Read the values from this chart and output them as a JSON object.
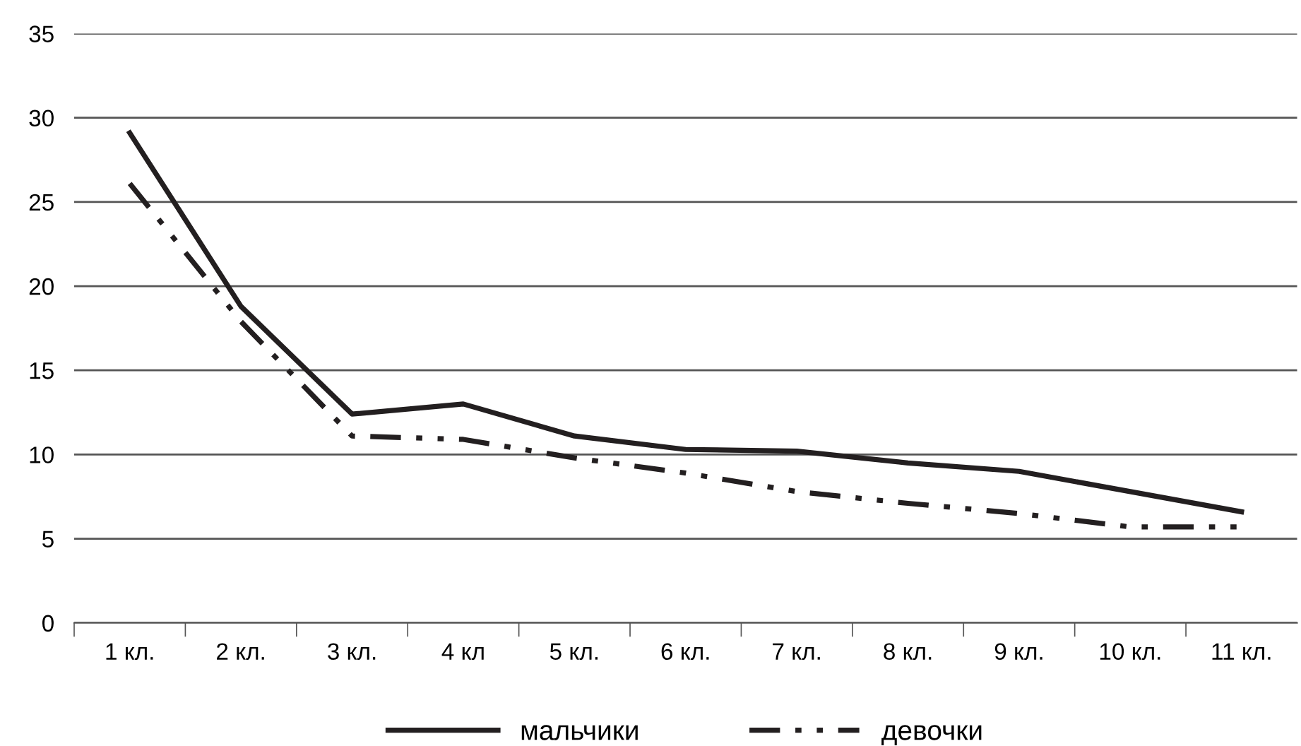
{
  "chart_data": {
    "type": "line",
    "categories": [
      "1 кл.",
      "2 кл.",
      "3 кл.",
      "4 кл",
      "5 кл.",
      "6 кл.",
      "7 кл.",
      "8 кл.",
      "9 кл.",
      "10 кл.",
      "11 кл."
    ],
    "series": [
      {
        "name": "мальчики",
        "color": "#231f20",
        "line_style": "solid",
        "values": [
          29.1,
          18.8,
          12.4,
          13.0,
          11.1,
          10.3,
          10.2,
          9.5,
          9.0,
          7.8,
          6.6
        ]
      },
      {
        "name": "девочки",
        "color": "#231f20",
        "line_style": "dashed",
        "values": [
          26.1,
          17.9,
          11.1,
          10.9,
          9.8,
          8.9,
          7.8,
          7.1,
          6.5,
          5.7,
          5.7
        ]
      }
    ],
    "ylim": [
      0,
      35
    ],
    "yticks": [
      0,
      5,
      10,
      15,
      20,
      25,
      30,
      35
    ],
    "grid": "y",
    "legend": "bottom",
    "marker": "none"
  }
}
